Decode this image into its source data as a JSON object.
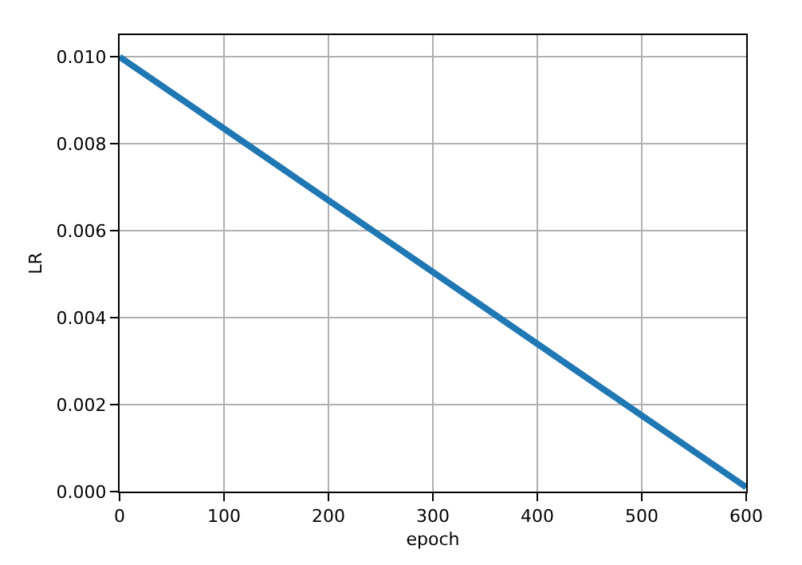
{
  "chart_data": {
    "type": "line",
    "xlabel": "epoch",
    "ylabel": "LR",
    "x": [
      0,
      600
    ],
    "series": [
      {
        "color": "#1f77b4",
        "values": [
          0.01,
          0.0001
        ]
      }
    ],
    "xlim": [
      0,
      600
    ],
    "xticks": [
      0,
      100,
      200,
      300,
      400,
      500,
      600
    ],
    "ylim": [
      0,
      0.0105
    ],
    "yticks": [
      {
        "value": 0,
        "label": "0.000"
      },
      {
        "value": 0.002,
        "label": "0.002"
      },
      {
        "value": 0.004,
        "label": "0.004"
      },
      {
        "value": 0.006,
        "label": "0.006"
      },
      {
        "value": 0.008,
        "label": "0.008"
      },
      {
        "value": 0.01,
        "label": "0.010"
      }
    ],
    "grid": true,
    "marker": "none",
    "line_style": "solid"
  }
}
